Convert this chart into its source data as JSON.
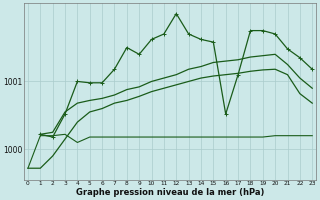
{
  "bg_color": "#cce8e8",
  "grid_color": "#aacccc",
  "dark_green": "#1a5c1a",
  "xlabel": "Graphe pression niveau de la mer (hPa)",
  "ylim": [
    999.55,
    1002.15
  ],
  "xlim": [
    -0.3,
    23.3
  ],
  "yticks": [
    1000,
    1001
  ],
  "s1_x": [
    0,
    1,
    2,
    3,
    4,
    5,
    6,
    7,
    8,
    9,
    10,
    11,
    12,
    13,
    14,
    15,
    16,
    17,
    18,
    19,
    20,
    21,
    22,
    23
  ],
  "s1_y": [
    999.72,
    999.72,
    999.9,
    1000.15,
    1000.4,
    1000.55,
    1000.6,
    1000.68,
    1000.72,
    1000.78,
    1000.85,
    1000.9,
    1000.95,
    1001.0,
    1001.05,
    1001.08,
    1001.1,
    1001.12,
    1001.15,
    1001.17,
    1001.18,
    1001.1,
    1000.82,
    1000.68
  ],
  "s2_x": [
    1,
    2,
    3,
    4,
    5,
    6,
    7,
    8,
    9,
    10,
    11,
    12,
    13,
    14,
    15,
    16,
    17,
    18,
    19,
    20,
    21,
    22,
    23
  ],
  "s2_y": [
    1000.22,
    1000.25,
    1000.55,
    1000.68,
    1000.72,
    1000.75,
    1000.8,
    1000.88,
    1000.92,
    1001.0,
    1001.05,
    1001.1,
    1001.18,
    1001.22,
    1001.28,
    1001.3,
    1001.32,
    1001.36,
    1001.38,
    1001.4,
    1001.25,
    1001.05,
    1000.9
  ],
  "s3_x": [
    1,
    2,
    3,
    4,
    5,
    6,
    7,
    8,
    9,
    10,
    11,
    12,
    13,
    14,
    15,
    16,
    17,
    18,
    19,
    20,
    21,
    22,
    23
  ],
  "s3_y": [
    1000.22,
    1000.18,
    1000.52,
    1001.0,
    1000.98,
    1000.98,
    1001.18,
    1001.5,
    1001.4,
    1001.62,
    1001.7,
    1002.0,
    1001.7,
    1001.62,
    1001.58,
    1000.52,
    1001.1,
    1001.75,
    1001.75,
    1001.7,
    1001.48,
    1001.35,
    1001.18
  ],
  "s4_x": [
    0,
    1,
    2,
    3,
    4,
    5,
    6,
    7,
    8,
    9,
    10,
    11,
    12,
    13,
    14,
    15,
    16,
    17,
    18,
    19,
    20,
    21,
    22,
    23
  ],
  "s4_y": [
    999.72,
    1000.2,
    1000.2,
    1000.22,
    1000.1,
    1000.18,
    1000.18,
    1000.18,
    1000.18,
    1000.18,
    1000.18,
    1000.18,
    1000.18,
    1000.18,
    1000.18,
    1000.18,
    1000.18,
    1000.18,
    1000.18,
    1000.18,
    1000.2,
    1000.2,
    1000.2,
    1000.2
  ]
}
